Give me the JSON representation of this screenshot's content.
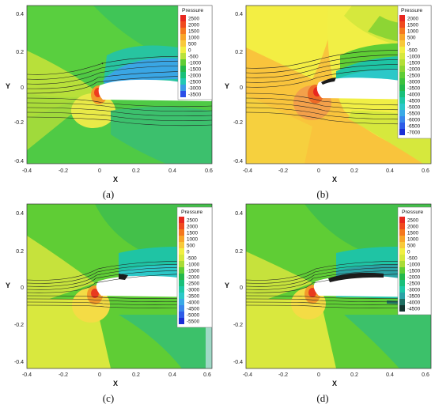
{
  "axis_labels": {
    "x": "X",
    "y": "Y"
  },
  "panels": [
    {
      "id": "a",
      "caption": "(a)",
      "x_ticks": [
        "-0.4",
        "-0.2",
        "0",
        "0.2",
        "0.4",
        "0.6"
      ],
      "y_ticks": [
        "0.4",
        "0.2",
        "0",
        "-0.2",
        "-0.4"
      ],
      "legend": {
        "title": "Pressure",
        "levels": [
          "2500",
          "2000",
          "1500",
          "1000",
          "500",
          "0",
          "-500",
          "-1000",
          "-1500",
          "-2000",
          "-2500",
          "-3000",
          "-3500"
        ],
        "colors": [
          "#e8271f",
          "#f04a1e",
          "#f5781e",
          "#f8a528",
          "#f8c93a",
          "#f1ef42",
          "#b9e23a",
          "#5fcd35",
          "#23b94b",
          "#19c07a",
          "#22c8b4",
          "#3a9be6",
          "#2b4fe8"
        ]
      }
    },
    {
      "id": "b",
      "caption": "(b)",
      "x_ticks": [
        "-0.4",
        "-0.2",
        "0",
        "0.2",
        "0.4",
        "0.6"
      ],
      "y_ticks": [
        "0.4",
        "0.2",
        "0",
        "-0.2",
        "-0.4"
      ],
      "legend": {
        "title": "Pressure",
        "levels": [
          "2000",
          "1500",
          "1000",
          "500",
          "0",
          "-500",
          "-1000",
          "-1500",
          "-2000",
          "-2500",
          "-3000",
          "-3500",
          "-4000",
          "-4500",
          "-5000",
          "-5500",
          "-6000",
          "-6500",
          "-7000"
        ],
        "colors": [
          "#e8271f",
          "#f04a1e",
          "#f5781e",
          "#f8a528",
          "#f8c93a",
          "#f1ef42",
          "#d6e83d",
          "#b3df37",
          "#8dd534",
          "#5fcd35",
          "#3cc23d",
          "#23b94b",
          "#19c07a",
          "#1ec8a6",
          "#2cc8c8",
          "#3aa9e6",
          "#3a86ec",
          "#2e5ce8",
          "#1a2ed6"
        ]
      }
    },
    {
      "id": "c",
      "caption": "(c)",
      "x_ticks": [
        "-0.4",
        "-0.2",
        "0",
        "0.2",
        "0.4",
        "0.6"
      ],
      "y_ticks": [
        "0.4",
        "0.2",
        "0",
        "-0.2",
        "-0.4"
      ],
      "legend": {
        "title": "Pressure",
        "levels": [
          "2500",
          "2000",
          "1500",
          "1000",
          "500",
          "0",
          "-500",
          "-1000",
          "-1500",
          "-2000",
          "-2500",
          "-3000",
          "-3500",
          "-4000",
          "-4500",
          "-5000",
          "-5500"
        ],
        "colors": [
          "#e8271f",
          "#f04a1e",
          "#f5781e",
          "#f8a528",
          "#f8c93a",
          "#f1ef42",
          "#d6e83d",
          "#a9dc36",
          "#5fcd35",
          "#23b94b",
          "#19c07a",
          "#1ec8a6",
          "#2cc8c8",
          "#3aa9e6",
          "#3a86ec",
          "#2e5ce8",
          "#1a2ed6"
        ]
      }
    },
    {
      "id": "d",
      "caption": "(d)",
      "x_ticks": [
        "-0.4",
        "-0.2",
        "0",
        "0.2",
        "0.4",
        "0.6"
      ],
      "y_ticks": [
        "0.4",
        "0.2",
        "0",
        "-0.2",
        "-0.4"
      ],
      "legend": {
        "title": "Pressure",
        "levels": [
          "2500",
          "2000",
          "1500",
          "1000",
          "500",
          "0",
          "-500",
          "-1000",
          "-1500",
          "-2000",
          "-2500",
          "-3000",
          "-3500",
          "-4000",
          "-4500"
        ],
        "colors": [
          "#e8271f",
          "#f04a1e",
          "#f5781e",
          "#f8a528",
          "#f8c93a",
          "#f1ef42",
          "#d6e83d",
          "#a9dc36",
          "#5fcd35",
          "#23b94b",
          "#19c07a",
          "#1ec8a6",
          "#2ba3a6",
          "#1f6e62",
          "#14352f"
        ]
      }
    }
  ]
}
